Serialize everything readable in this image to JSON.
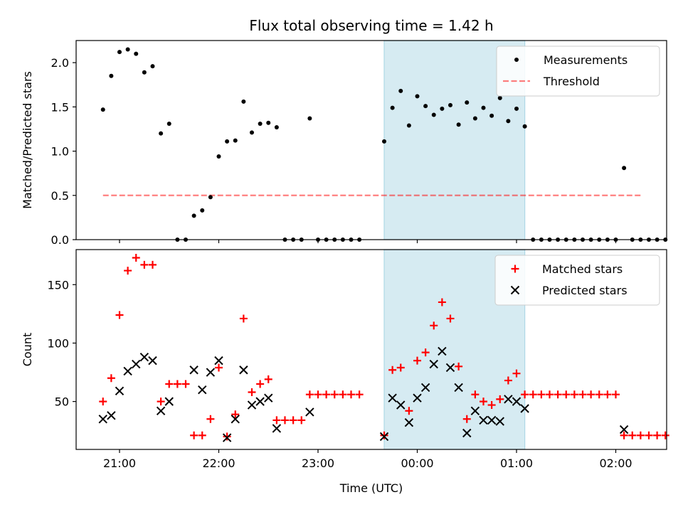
{
  "chart_data": {
    "type": "scatter",
    "title": "Flux total observing time = 1.42 h",
    "xlabel": "Time (UTC)",
    "x_ticks": [
      "21:00",
      "22:00",
      "23:00",
      "00:00",
      "01:00",
      "02:00"
    ],
    "colors": {
      "shade": "#add8e6",
      "threshold": "#ff0000",
      "matched": "#ff0000",
      "predicted": "#000000",
      "measurements": "#000000"
    },
    "shaded_interval": [
      "23:40",
      "01:05"
    ],
    "panels": [
      {
        "ylabel": "Matched/Predicted stars",
        "ylim": [
          0,
          2.25
        ],
        "y_ticks": [
          "0.0",
          "0.5",
          "1.0",
          "1.5",
          "2.0"
        ],
        "legend_position": "top-right",
        "threshold": {
          "name": "Threshold",
          "value": 0.5,
          "x_range": [
            "20:50",
            "02:15"
          ]
        },
        "series": [
          {
            "name": "Measurements",
            "points": [
              [
                "20:50",
                1.47
              ],
              [
                "20:55",
                1.85
              ],
              [
                "21:00",
                2.12
              ],
              [
                "21:05",
                2.15
              ],
              [
                "21:10",
                2.1
              ],
              [
                "21:15",
                1.89
              ],
              [
                "21:20",
                1.96
              ],
              [
                "21:25",
                1.2
              ],
              [
                "21:30",
                1.31
              ],
              [
                "21:35",
                0
              ],
              [
                "21:40",
                0
              ],
              [
                "21:45",
                0.27
              ],
              [
                "21:50",
                0.33
              ],
              [
                "21:55",
                0.48
              ],
              [
                "22:00",
                0.94
              ],
              [
                "22:05",
                1.11
              ],
              [
                "22:10",
                1.12
              ],
              [
                "22:15",
                1.56
              ],
              [
                "22:20",
                1.21
              ],
              [
                "22:25",
                1.31
              ],
              [
                "22:30",
                1.32
              ],
              [
                "22:35",
                1.27
              ],
              [
                "22:40",
                0
              ],
              [
                "22:45",
                0
              ],
              [
                "22:50",
                0
              ],
              [
                "22:55",
                1.37
              ],
              [
                "23:00",
                0
              ],
              [
                "23:05",
                0
              ],
              [
                "23:10",
                0
              ],
              [
                "23:15",
                0
              ],
              [
                "23:20",
                0
              ],
              [
                "23:25",
                0
              ],
              [
                "23:40",
                1.11
              ],
              [
                "23:45",
                1.49
              ],
              [
                "23:50",
                1.68
              ],
              [
                "23:55",
                1.29
              ],
              [
                "00:00",
                1.62
              ],
              [
                "00:05",
                1.51
              ],
              [
                "00:10",
                1.41
              ],
              [
                "00:15",
                1.48
              ],
              [
                "00:20",
                1.52
              ],
              [
                "00:25",
                1.3
              ],
              [
                "00:30",
                1.55
              ],
              [
                "00:35",
                1.37
              ],
              [
                "00:40",
                1.49
              ],
              [
                "00:45",
                1.4
              ],
              [
                "00:50",
                1.6
              ],
              [
                "00:55",
                1.34
              ],
              [
                "01:00",
                1.48
              ],
              [
                "01:05",
                1.28
              ],
              [
                "01:10",
                0
              ],
              [
                "01:15",
                0
              ],
              [
                "01:20",
                0
              ],
              [
                "01:25",
                0
              ],
              [
                "01:30",
                0
              ],
              [
                "01:35",
                0
              ],
              [
                "01:40",
                0
              ],
              [
                "01:45",
                0
              ],
              [
                "01:50",
                0
              ],
              [
                "01:55",
                0
              ],
              [
                "02:00",
                0
              ],
              [
                "02:05",
                0.81
              ],
              [
                "02:10",
                0
              ],
              [
                "02:15",
                0
              ],
              [
                "02:20",
                0
              ],
              [
                "02:25",
                0
              ],
              [
                "02:30",
                0
              ]
            ]
          }
        ]
      },
      {
        "ylabel": "Count",
        "ylim": [
          9,
          180
        ],
        "y_ticks": [
          "50",
          "100",
          "150"
        ],
        "legend_position": "top-right",
        "series": [
          {
            "name": "Matched stars",
            "points": [
              [
                "20:50",
                50
              ],
              [
                "20:55",
                70
              ],
              [
                "21:00",
                124
              ],
              [
                "21:05",
                162
              ],
              [
                "21:10",
                173
              ],
              [
                "21:15",
                167
              ],
              [
                "21:20",
                167
              ],
              [
                "21:25",
                50
              ],
              [
                "21:30",
                65
              ],
              [
                "21:35",
                65
              ],
              [
                "21:40",
                65
              ],
              [
                "21:45",
                21
              ],
              [
                "21:50",
                21
              ],
              [
                "21:55",
                35
              ],
              [
                "22:00",
                79
              ],
              [
                "22:05",
                20
              ],
              [
                "22:10",
                39
              ],
              [
                "22:15",
                121
              ],
              [
                "22:20",
                58
              ],
              [
                "22:25",
                65
              ],
              [
                "22:30",
                69
              ],
              [
                "22:35",
                34
              ],
              [
                "22:40",
                34
              ],
              [
                "22:45",
                34
              ],
              [
                "22:50",
                34
              ],
              [
                "22:55",
                56
              ],
              [
                "23:00",
                56
              ],
              [
                "23:05",
                56
              ],
              [
                "23:10",
                56
              ],
              [
                "23:15",
                56
              ],
              [
                "23:20",
                56
              ],
              [
                "23:25",
                56
              ],
              [
                "23:40",
                21
              ],
              [
                "23:45",
                77
              ],
              [
                "23:50",
                79
              ],
              [
                "23:55",
                42
              ],
              [
                "00:00",
                85
              ],
              [
                "00:05",
                92
              ],
              [
                "00:10",
                115
              ],
              [
                "00:15",
                135
              ],
              [
                "00:20",
                121
              ],
              [
                "00:25",
                80
              ],
              [
                "00:30",
                35
              ],
              [
                "00:35",
                56
              ],
              [
                "00:40",
                50
              ],
              [
                "00:45",
                47
              ],
              [
                "00:50",
                52
              ],
              [
                "00:55",
                68
              ],
              [
                "01:00",
                74
              ],
              [
                "01:05",
                56
              ],
              [
                "01:10",
                56
              ],
              [
                "01:15",
                56
              ],
              [
                "01:20",
                56
              ],
              [
                "01:25",
                56
              ],
              [
                "01:30",
                56
              ],
              [
                "01:35",
                56
              ],
              [
                "01:40",
                56
              ],
              [
                "01:45",
                56
              ],
              [
                "01:50",
                56
              ],
              [
                "01:55",
                56
              ],
              [
                "02:00",
                56
              ],
              [
                "02:05",
                21
              ],
              [
                "02:10",
                21
              ],
              [
                "02:15",
                21
              ],
              [
                "02:20",
                21
              ],
              [
                "02:25",
                21
              ],
              [
                "02:30",
                21
              ]
            ]
          },
          {
            "name": "Predicted stars",
            "points": [
              [
                "20:50",
                35
              ],
              [
                "20:55",
                38
              ],
              [
                "21:00",
                59
              ],
              [
                "21:05",
                76
              ],
              [
                "21:10",
                82
              ],
              [
                "21:15",
                88
              ],
              [
                "21:20",
                85
              ],
              [
                "21:25",
                42
              ],
              [
                "21:30",
                50
              ],
              [
                "21:45",
                77
              ],
              [
                "21:50",
                60
              ],
              [
                "21:55",
                75
              ],
              [
                "22:00",
                85
              ],
              [
                "22:05",
                19
              ],
              [
                "22:10",
                35
              ],
              [
                "22:15",
                77
              ],
              [
                "22:20",
                47
              ],
              [
                "22:25",
                50
              ],
              [
                "22:30",
                53
              ],
              [
                "22:35",
                27
              ],
              [
                "22:55",
                41
              ],
              [
                "23:40",
                20
              ],
              [
                "23:45",
                53
              ],
              [
                "23:50",
                47
              ],
              [
                "23:55",
                32
              ],
              [
                "00:00",
                53
              ],
              [
                "00:05",
                62
              ],
              [
                "00:10",
                82
              ],
              [
                "00:15",
                93
              ],
              [
                "00:20",
                79
              ],
              [
                "00:25",
                62
              ],
              [
                "00:30",
                23
              ],
              [
                "00:35",
                42
              ],
              [
                "00:40",
                34
              ],
              [
                "00:45",
                34
              ],
              [
                "00:50",
                33
              ],
              [
                "00:55",
                52
              ],
              [
                "01:00",
                50
              ],
              [
                "01:05",
                44
              ],
              [
                "02:05",
                26
              ]
            ]
          }
        ]
      }
    ]
  }
}
